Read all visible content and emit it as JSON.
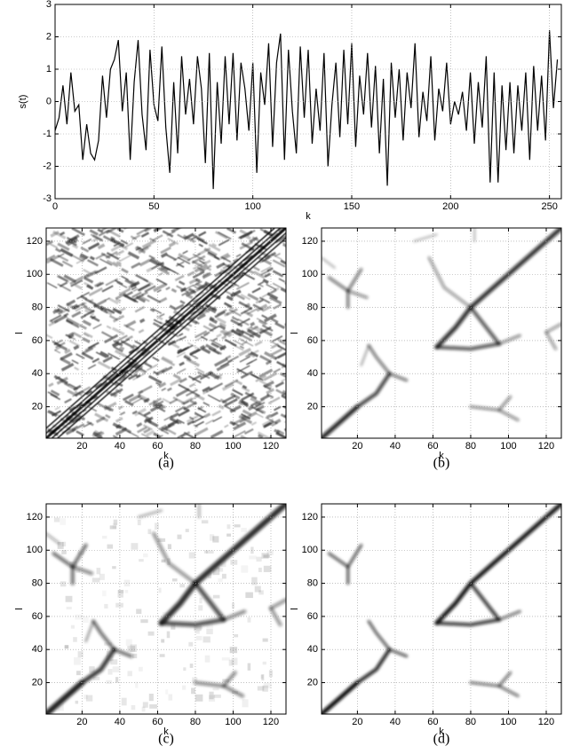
{
  "chart_data": [
    {
      "type": "line",
      "xlabel": "k",
      "ylabel": "s(t)",
      "color": "#000000",
      "grid": true,
      "xlim": [
        0,
        256
      ],
      "xticks": [
        0,
        50,
        100,
        150,
        200,
        250
      ],
      "ylim": [
        -3,
        3
      ],
      "yticks": [
        -3,
        -2,
        -1,
        0,
        1,
        2,
        3
      ],
      "x": [
        0,
        2,
        4,
        6,
        8,
        10,
        12,
        14,
        16,
        18,
        20,
        22,
        24,
        26,
        28,
        30,
        32,
        34,
        36,
        38,
        40,
        42,
        44,
        46,
        48,
        50,
        52,
        54,
        56,
        58,
        60,
        62,
        64,
        66,
        68,
        70,
        72,
        74,
        76,
        78,
        80,
        82,
        84,
        86,
        88,
        90,
        92,
        94,
        96,
        98,
        100,
        102,
        104,
        106,
        108,
        110,
        112,
        114,
        116,
        118,
        120,
        122,
        124,
        126,
        128,
        130,
        132,
        134,
        136,
        138,
        140,
        142,
        144,
        146,
        148,
        150,
        152,
        154,
        156,
        158,
        160,
        162,
        164,
        166,
        168,
        170,
        172,
        174,
        176,
        178,
        180,
        182,
        184,
        186,
        188,
        190,
        192,
        194,
        196,
        198,
        200,
        202,
        204,
        206,
        208,
        210,
        212,
        214,
        216,
        218,
        220,
        222,
        224,
        226,
        228,
        230,
        232,
        234,
        236,
        238,
        240,
        242,
        244,
        246,
        248,
        250,
        252,
        254
      ],
      "values": [
        -0.9,
        -0.5,
        0.5,
        -0.7,
        0.9,
        -0.3,
        -0.1,
        -1.8,
        -0.7,
        -1.6,
        -1.8,
        -1.2,
        0.8,
        -0.5,
        1.0,
        1.3,
        1.9,
        -0.3,
        0.9,
        -1.8,
        0.6,
        1.9,
        -0.4,
        -1.5,
        1.6,
        -0.1,
        -0.6,
        1.7,
        -0.8,
        -2.2,
        0.6,
        -1.6,
        1.4,
        -0.4,
        0.7,
        -0.7,
        1.4,
        0.4,
        -1.9,
        1.5,
        -2.7,
        0.6,
        -1.3,
        1.4,
        -0.7,
        1.5,
        -1.2,
        1.2,
        0.4,
        -0.9,
        1.2,
        -2.2,
        0.9,
        -0.1,
        1.8,
        -1.4,
        1.2,
        2.1,
        -1.8,
        1.6,
        -0.3,
        -1.6,
        1.7,
        -0.5,
        1.6,
        -1.3,
        0.4,
        -0.9,
        1.5,
        -2.0,
        -0.1,
        1.2,
        -1.1,
        1.6,
        -0.7,
        1.8,
        -1.4,
        0.8,
        -0.4,
        1.5,
        -0.8,
        1.1,
        -1.6,
        0.7,
        -2.6,
        1.2,
        -0.5,
        1.0,
        -1.2,
        0.9,
        -0.2,
        1.8,
        -1.1,
        0.3,
        -0.6,
        1.4,
        -1.2,
        0.4,
        -0.3,
        1.2,
        -0.7,
        0.0,
        -0.4,
        0.3,
        -0.9,
        0.9,
        -1.3,
        0.6,
        -0.8,
        1.4,
        -2.5,
        0.9,
        -2.5,
        0.5,
        -1.5,
        0.6,
        -1.6,
        0.5,
        -0.9,
        0.9,
        -1.8,
        1.1,
        -0.9,
        0.8,
        -1.2,
        2.2,
        -0.2,
        1.3
      ]
    },
    {
      "type": "image",
      "caption": "(a)",
      "xlabel": "k",
      "ylabel": "l",
      "grid": true,
      "xlim": [
        1,
        128
      ],
      "xticks": [
        20,
        40,
        60,
        80,
        100,
        120
      ],
      "ylim": [
        1,
        128
      ],
      "yticks": [
        20,
        40,
        60,
        80,
        100,
        120
      ]
    },
    {
      "type": "image",
      "caption": "(b)",
      "xlabel": "k",
      "ylabel": "l",
      "grid": true,
      "xlim": [
        1,
        128
      ],
      "xticks": [
        20,
        40,
        60,
        80,
        100,
        120
      ],
      "ylim": [
        1,
        128
      ],
      "yticks": [
        20,
        40,
        60,
        80,
        100,
        120
      ]
    },
    {
      "type": "image",
      "caption": "(c)",
      "xlabel": "k",
      "ylabel": "l",
      "grid": true,
      "xlim": [
        1,
        128
      ],
      "xticks": [
        20,
        40,
        60,
        80,
        100,
        120
      ],
      "ylim": [
        1,
        128
      ],
      "yticks": [
        20,
        40,
        60,
        80,
        100,
        120
      ]
    },
    {
      "type": "image",
      "caption": "(d)",
      "xlabel": "k",
      "ylabel": "l",
      "grid": true,
      "xlim": [
        1,
        128
      ],
      "xticks": [
        20,
        40,
        60,
        80,
        100,
        120
      ],
      "ylim": [
        1,
        128
      ],
      "yticks": [
        20,
        40,
        60,
        80,
        100,
        120
      ]
    }
  ]
}
